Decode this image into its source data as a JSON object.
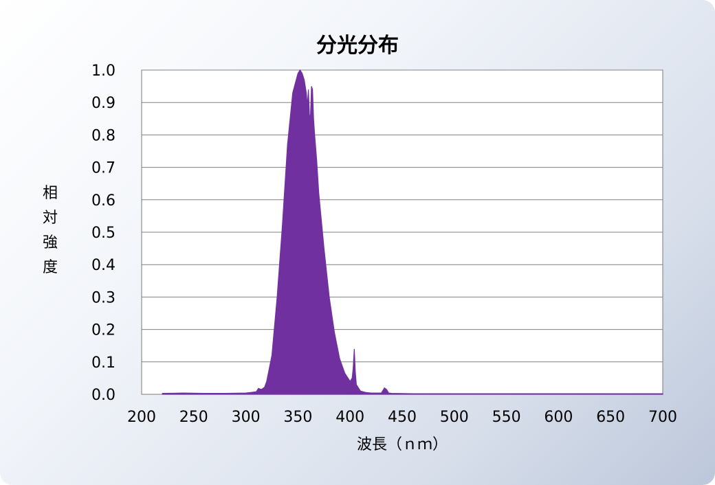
{
  "chart_data": {
    "type": "area",
    "title": "分光分布",
    "xlabel": "波長（ｎｍ）",
    "ylabel": "相対強度",
    "xlim": [
      200,
      700
    ],
    "ylim": [
      0,
      1.0
    ],
    "x_ticks": [
      "200",
      "250",
      "300",
      "350",
      "400",
      "450",
      "500",
      "550",
      "600",
      "650",
      "700"
    ],
    "y_ticks": [
      "0.0",
      "0.1",
      "0.2",
      "0.3",
      "0.4",
      "0.5",
      "0.6",
      "0.7",
      "0.8",
      "0.9",
      "1.0"
    ],
    "grid": true,
    "colors": {
      "fill": "#7030a0"
    },
    "series": [
      {
        "x": [
          220,
          240,
          260,
          280,
          300,
          305,
          310,
          312,
          315,
          318,
          320,
          325,
          330,
          335,
          340,
          345,
          350,
          352,
          354,
          356,
          358,
          359,
          360,
          361,
          362,
          363,
          364,
          365,
          366,
          368,
          370,
          375,
          380,
          385,
          390,
          395,
          400,
          402,
          403,
          404,
          405,
          406,
          408,
          410,
          415,
          420,
          430,
          433,
          435,
          437,
          440,
          460,
          500,
          600,
          700
        ],
        "y": [
          0.003,
          0.004,
          0.003,
          0.003,
          0.004,
          0.006,
          0.008,
          0.018,
          0.015,
          0.022,
          0.04,
          0.12,
          0.3,
          0.52,
          0.77,
          0.93,
          0.99,
          1.0,
          0.99,
          0.97,
          0.93,
          0.89,
          0.94,
          0.86,
          0.86,
          0.95,
          0.94,
          0.85,
          0.8,
          0.72,
          0.62,
          0.45,
          0.3,
          0.19,
          0.11,
          0.065,
          0.04,
          0.05,
          0.08,
          0.14,
          0.07,
          0.03,
          0.02,
          0.01,
          0.006,
          0.004,
          0.004,
          0.02,
          0.015,
          0.004,
          0.003,
          0.002,
          0.002,
          0.002,
          0.002
        ]
      }
    ]
  }
}
